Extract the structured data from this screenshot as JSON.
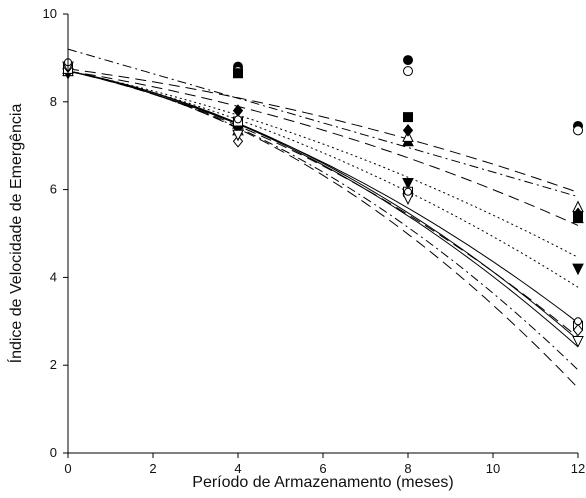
{
  "chart_data": {
    "type": "scatter",
    "title": "",
    "xlabel": "Período de Armazenamento (meses)",
    "ylabel": "Índice de Velocidade de Emergência",
    "xlim": [
      0,
      12
    ],
    "ylim": [
      0,
      10
    ],
    "xticks": [
      0,
      2,
      4,
      6,
      8,
      10,
      12
    ],
    "yticks": [
      0,
      2,
      4,
      6,
      8,
      10
    ],
    "grid": false,
    "legend": "none",
    "series": [
      {
        "marker": "circle-filled",
        "x": [
          0,
          4,
          8,
          12
        ],
        "y": [
          8.85,
          8.8,
          8.95,
          7.45
        ]
      },
      {
        "marker": "circle-open",
        "x": [
          0,
          4,
          8,
          12
        ],
        "y": [
          8.85,
          8.7,
          8.7,
          7.35
        ]
      },
      {
        "marker": "square-filled",
        "x": [
          0,
          4,
          8,
          12
        ],
        "y": [
          8.7,
          8.65,
          7.65,
          5.4
        ]
      },
      {
        "marker": "triangle-up-filled",
        "x": [
          0,
          4,
          8,
          12
        ],
        "y": [
          8.75,
          7.5,
          7.1,
          5.35
        ]
      },
      {
        "marker": "triangle-up-open",
        "x": [
          0,
          4,
          8,
          12
        ],
        "y": [
          8.7,
          7.35,
          7.2,
          5.6
        ]
      },
      {
        "marker": "diamond-filled",
        "x": [
          0,
          4,
          8,
          12
        ],
        "y": [
          8.7,
          7.8,
          7.35,
          5.45
        ]
      },
      {
        "marker": "triangle-down-filled",
        "x": [
          0,
          4,
          8,
          12
        ],
        "y": [
          8.65,
          7.35,
          6.15,
          4.2
        ]
      },
      {
        "marker": "square-open",
        "x": [
          0,
          4,
          8,
          12
        ],
        "y": [
          8.75,
          7.55,
          5.95,
          2.9
        ]
      },
      {
        "marker": "diamond-open",
        "x": [
          0,
          4,
          8,
          12
        ],
        "y": [
          8.8,
          7.1,
          5.9,
          2.8
        ]
      },
      {
        "marker": "triangle-down-open",
        "x": [
          0,
          4,
          8,
          12
        ],
        "y": [
          8.8,
          7.25,
          5.8,
          2.55
        ]
      },
      {
        "marker": "circle-open-small",
        "x": [
          0,
          4,
          8,
          12
        ],
        "y": [
          8.9,
          7.6,
          5.95,
          3.0
        ]
      }
    ],
    "fitted_curves": [
      {
        "style": "dash-dot",
        "a": 9.2,
        "b": -0.28,
        "c": 0.0
      },
      {
        "style": "dash",
        "a": 8.75,
        "b": -0.13,
        "c": -0.0087
      },
      {
        "style": "dash",
        "a": 8.7,
        "b": -0.155,
        "c": -0.0115
      },
      {
        "style": "dot",
        "a": 8.7,
        "b": -0.2,
        "c": -0.0128
      },
      {
        "style": "dot",
        "a": 8.7,
        "b": -0.21,
        "c": -0.0167
      },
      {
        "style": "solid",
        "a": 8.7,
        "b": -0.215,
        "c": -0.0219
      },
      {
        "style": "dash",
        "a": 8.7,
        "b": -0.215,
        "c": -0.0242
      },
      {
        "style": "solid",
        "a": 8.7,
        "b": -0.19,
        "c": -0.0267
      },
      {
        "style": "solid",
        "a": 8.7,
        "b": -0.19,
        "c": -0.0278
      },
      {
        "style": "dash-dot",
        "a": 8.7,
        "b": -0.2,
        "c": -0.0306
      },
      {
        "style": "dash",
        "a": 8.7,
        "b": -0.19,
        "c": -0.0343
      }
    ]
  }
}
